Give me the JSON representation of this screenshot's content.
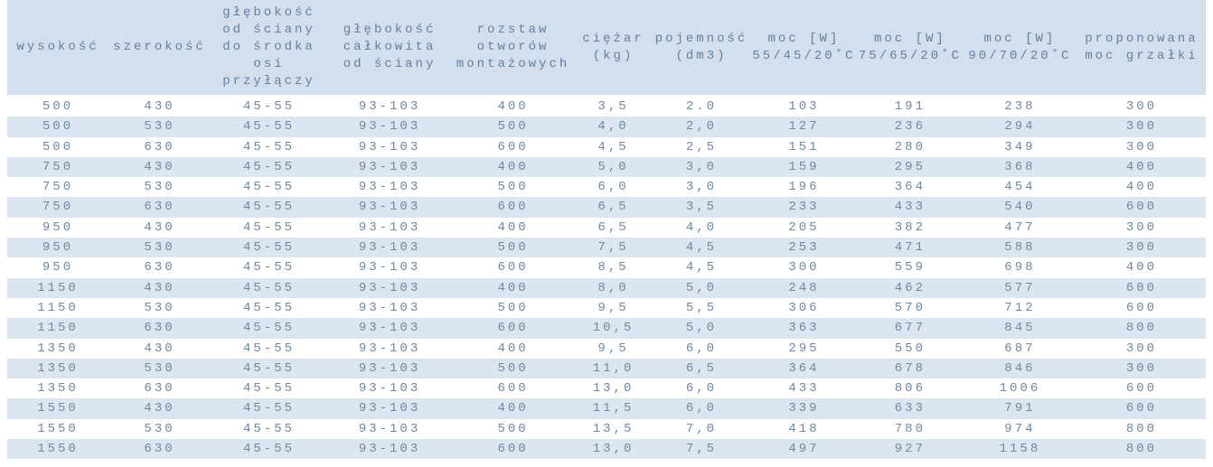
{
  "colors": {
    "header_bg": "#d3dfed",
    "header_text": "#647f9f",
    "row_bg": "#ffffff",
    "row_alt_bg": "#dce6f1",
    "cell_text": "#7188a0"
  },
  "table": {
    "columns": [
      {
        "id": "wysokosc",
        "label_lines": [
          "wysokość"
        ]
      },
      {
        "id": "szerokosc",
        "label_lines": [
          "szerokość"
        ]
      },
      {
        "id": "glebokosc-do-osi",
        "label_lines": [
          "głębokość",
          "od ściany",
          "do środka",
          "osi",
          "przyłączy"
        ]
      },
      {
        "id": "glebokosc-calkowita",
        "label_lines": [
          "głębokość",
          "całkowita",
          "od ściany"
        ]
      },
      {
        "id": "rozstaw-otworow",
        "label_lines": [
          "rozstaw",
          "otworów",
          "montażowych"
        ]
      },
      {
        "id": "ciezar",
        "label_lines": [
          "ciężar",
          "(kg)"
        ]
      },
      {
        "id": "pojemnosc",
        "label_lines": [
          "pojemność",
          "(dm3)"
        ]
      },
      {
        "id": "moc-55-45-20",
        "label_lines": [
          "moc [W]",
          "55/45/20˚C"
        ]
      },
      {
        "id": "moc-75-65-20",
        "label_lines": [
          "moc [W]",
          "75/65/20˚C"
        ]
      },
      {
        "id": "moc-90-70-20",
        "label_lines": [
          "moc [W]",
          "90/70/20˚C"
        ]
      },
      {
        "id": "moc-grzalki",
        "label_lines": [
          "proponowana",
          "moc grzałki"
        ]
      }
    ],
    "rows": [
      [
        "500",
        "430",
        "45-55",
        "93-103",
        "400",
        "3,5",
        "2.0",
        "103",
        "191",
        "238",
        "300"
      ],
      [
        "500",
        "530",
        "45-55",
        "93-103",
        "500",
        "4,0",
        "2,0",
        "127",
        "236",
        "294",
        "300"
      ],
      [
        "500",
        "630",
        "45-55",
        "93-103",
        "600",
        "4,5",
        "2,5",
        "151",
        "280",
        "349",
        "300"
      ],
      [
        "750",
        "430",
        "45-55",
        "93-103",
        "400",
        "5,0",
        "3,0",
        "159",
        "295",
        "368",
        "400"
      ],
      [
        "750",
        "530",
        "45-55",
        "93-103",
        "500",
        "6,0",
        "3,0",
        "196",
        "364",
        "454",
        "400"
      ],
      [
        "750",
        "630",
        "45-55",
        "93-103",
        "600",
        "6,5",
        "3,5",
        "233",
        "433",
        "540",
        "600"
      ],
      [
        "950",
        "430",
        "45-55",
        "93-103",
        "400",
        "6,5",
        "4,0",
        "205",
        "382",
        "477",
        "300"
      ],
      [
        "950",
        "530",
        "45-55",
        "93-103",
        "500",
        "7,5",
        "4,5",
        "253",
        "471",
        "588",
        "300"
      ],
      [
        "950",
        "630",
        "45-55",
        "93-103",
        "600",
        "8,5",
        "4,5",
        "300",
        "559",
        "698",
        "400"
      ],
      [
        "1150",
        "430",
        "45-55",
        "93-103",
        "400",
        "8,0",
        "5,0",
        "248",
        "462",
        "577",
        "600"
      ],
      [
        "1150",
        "530",
        "45-55",
        "93-103",
        "500",
        "9,5",
        "5,5",
        "306",
        "570",
        "712",
        "600"
      ],
      [
        "1150",
        "630",
        "45-55",
        "93-103",
        "600",
        "10,5",
        "5,0",
        "363",
        "677",
        "845",
        "800"
      ],
      [
        "1350",
        "430",
        "45-55",
        "93-103",
        "400",
        "9,5",
        "6,0",
        "295",
        "550",
        "687",
        "300"
      ],
      [
        "1350",
        "530",
        "45-55",
        "93-103",
        "500",
        "11,0",
        "6,5",
        "364",
        "678",
        "846",
        "300"
      ],
      [
        "1350",
        "630",
        "45-55",
        "93-103",
        "600",
        "13,0",
        "6,0",
        "433",
        "806",
        "1006",
        "600"
      ],
      [
        "1550",
        "430",
        "45-55",
        "93-103",
        "400",
        "11,5",
        "6,0",
        "339",
        "633",
        "791",
        "600"
      ],
      [
        "1550",
        "530",
        "45-55",
        "93-103",
        "500",
        "13,5",
        "7,0",
        "418",
        "780",
        "974",
        "800"
      ],
      [
        "1550",
        "630",
        "45-55",
        "93-103",
        "600",
        "13,0",
        "7,5",
        "497",
        "927",
        "1158",
        "800"
      ]
    ]
  }
}
